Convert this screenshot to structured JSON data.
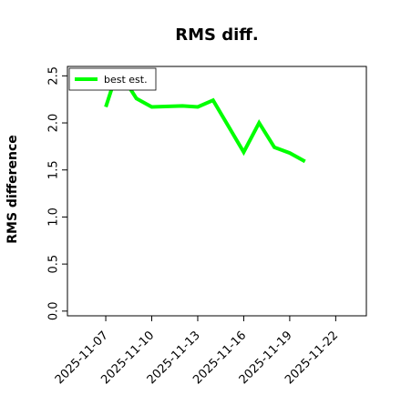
{
  "chart_data": {
    "type": "line",
    "title": "RMS diff.",
    "xlabel": "",
    "ylabel": "RMS difference",
    "xlim": [
      "2025-11-04T12:00",
      "2025-11-24T00:00"
    ],
    "ylim": [
      -0.05,
      2.6
    ],
    "x_ticks": [
      "2025-11-07",
      "2025-11-10",
      "2025-11-13",
      "2025-11-16",
      "2025-11-19",
      "2025-11-22"
    ],
    "y_ticks": [
      "0.0",
      "0.5",
      "1.0",
      "1.5",
      "2.0",
      "2.5"
    ],
    "grid": false,
    "legend_position": "top-left",
    "series": [
      {
        "name": "best est.",
        "color": "#00ff00",
        "points": [
          {
            "x": "2025-11-07T00:00",
            "y": 2.17
          },
          {
            "x": "2025-11-07T12:00",
            "y": 2.42
          },
          {
            "x": "2025-11-08T06:00",
            "y": 2.45
          },
          {
            "x": "2025-11-09T00:00",
            "y": 2.26
          },
          {
            "x": "2025-11-10T00:00",
            "y": 2.17
          },
          {
            "x": "2025-11-12T00:00",
            "y": 2.18
          },
          {
            "x": "2025-11-13T00:00",
            "y": 2.17
          },
          {
            "x": "2025-11-14T00:00",
            "y": 2.24
          },
          {
            "x": "2025-11-16T00:00",
            "y": 1.69
          },
          {
            "x": "2025-11-17T00:00",
            "y": 2.0
          },
          {
            "x": "2025-11-18T00:00",
            "y": 1.74
          },
          {
            "x": "2025-11-19T00:00",
            "y": 1.68
          },
          {
            "x": "2025-11-20T00:00",
            "y": 1.59
          }
        ]
      }
    ]
  }
}
